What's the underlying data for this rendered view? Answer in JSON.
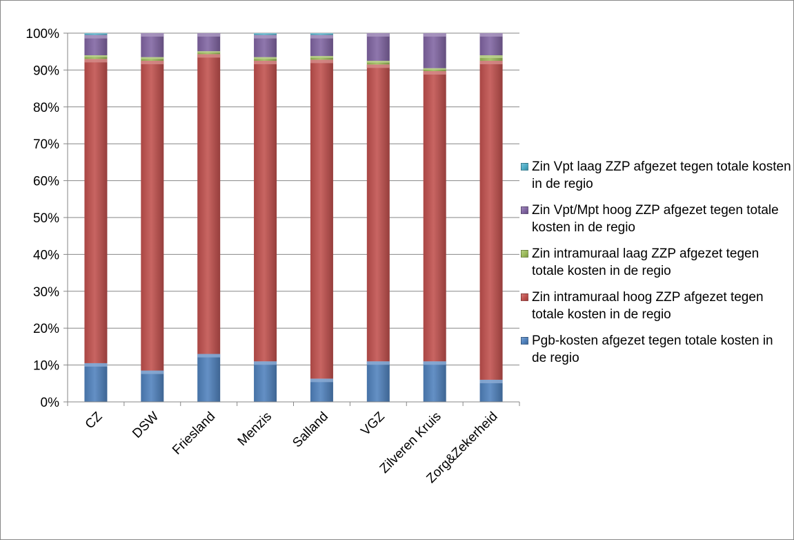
{
  "chart_data": {
    "type": "bar",
    "stacked": true,
    "percent": true,
    "title": "",
    "xlabel": "",
    "ylabel": "",
    "ylim": [
      0,
      100
    ],
    "y_ticks": [
      "0%",
      "10%",
      "20%",
      "30%",
      "40%",
      "50%",
      "60%",
      "70%",
      "80%",
      "90%",
      "100%"
    ],
    "grid": true,
    "legend_position": "right",
    "categories": [
      "CZ",
      "DSW",
      "Friesland",
      "Menzis",
      "Salland",
      "VGZ",
      "Zilveren Kruis",
      "Zorg&Zekerheid"
    ],
    "series": [
      {
        "name": "Pgb-kosten afgezet tegen totale kosten in de regio",
        "color": "#4F81BD",
        "values": [
          10.5,
          8.5,
          13.0,
          11.0,
          6.3,
          11.0,
          11.0,
          6.0
        ]
      },
      {
        "name": "Zin intramuraal hoog ZZP afgezet tegen totale kosten in de regio",
        "color": "#C0504D",
        "values": [
          82.5,
          84.0,
          81.3,
          81.5,
          86.5,
          80.5,
          78.7,
          86.5
        ]
      },
      {
        "name": "Zin intramuraal laag ZZP afgezet tegen totale kosten in de regio",
        "color": "#9BBB59",
        "values": [
          1.0,
          1.0,
          0.8,
          1.0,
          1.0,
          1.0,
          0.8,
          1.5
        ]
      },
      {
        "name": "Zin Vpt/Mpt hoog ZZP afgezet tegen totale kosten in de regio",
        "color": "#8064A2",
        "values": [
          5.5,
          6.5,
          4.9,
          6.0,
          5.7,
          7.5,
          9.5,
          6.0
        ]
      },
      {
        "name": "Zin Vpt laag ZZP afgezet tegen totale kosten in de regio",
        "color": "#4BACC6",
        "values": [
          0.5,
          0.0,
          0.0,
          0.5,
          0.5,
          0.0,
          0.0,
          0.0
        ]
      }
    ]
  }
}
